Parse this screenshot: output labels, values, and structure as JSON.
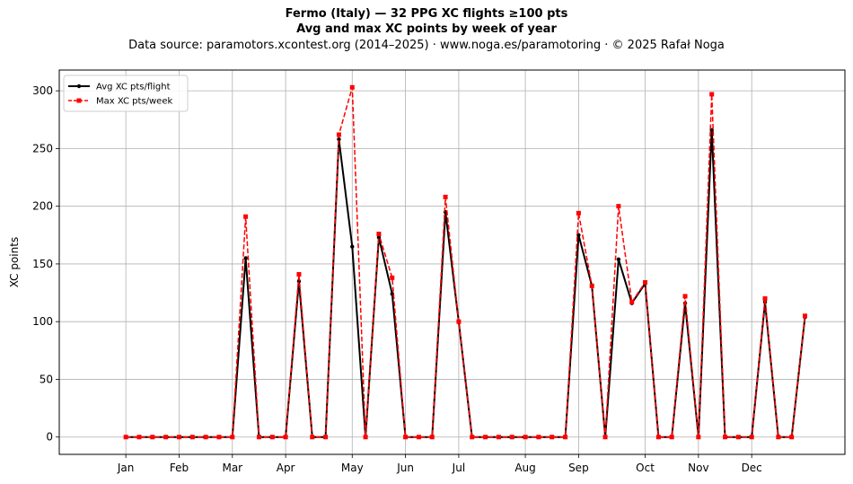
{
  "header": {
    "title": "Fermo (Italy)  —  32 PPG XC flights ≥100 pts",
    "subtitle": "Avg and max XC points by week of year",
    "source": "Data source: paramotors.xcontest.org (2014–2025)  ·  www.noga.es/paramotoring  ·  © 2025 Rafał Noga"
  },
  "chart_data": {
    "type": "line",
    "title": "Fermo (Italy)  —  32 PPG XC flights ≥100 pts",
    "subtitle": "Avg and max XC points by week of year",
    "xlabel": "",
    "ylabel": "XC points",
    "xlim": [
      -4,
      55
    ],
    "ylim": [
      -15,
      318
    ],
    "grid": true,
    "legend_position": "top-left",
    "x_ticks": [
      {
        "week": 1,
        "label": "Jan"
      },
      {
        "week": 5,
        "label": "Feb"
      },
      {
        "week": 9,
        "label": "Mar"
      },
      {
        "week": 13,
        "label": "Apr"
      },
      {
        "week": 18,
        "label": "May"
      },
      {
        "week": 22,
        "label": "Jun"
      },
      {
        "week": 26,
        "label": "Jul"
      },
      {
        "week": 31,
        "label": "Aug"
      },
      {
        "week": 35,
        "label": "Sep"
      },
      {
        "week": 40,
        "label": "Oct"
      },
      {
        "week": 44,
        "label": "Nov"
      },
      {
        "week": 48,
        "label": "Dec"
      }
    ],
    "y_ticks": [
      0,
      50,
      100,
      150,
      200,
      250,
      300
    ],
    "x": [
      1,
      2,
      3,
      4,
      5,
      6,
      7,
      8,
      9,
      10,
      11,
      12,
      13,
      14,
      15,
      16,
      17,
      18,
      19,
      20,
      21,
      22,
      23,
      24,
      25,
      26,
      27,
      28,
      29,
      30,
      31,
      32,
      33,
      34,
      35,
      36,
      37,
      38,
      39,
      40,
      41,
      42,
      43,
      44,
      45,
      46,
      47,
      48,
      49,
      50,
      51,
      52
    ],
    "series": [
      {
        "name": "Avg XC pts/flight",
        "color": "#000000",
        "style": "solid",
        "marker": "circle",
        "values": [
          0,
          0,
          0,
          0,
          0,
          0,
          0,
          0,
          0,
          155,
          0,
          0,
          0,
          135,
          0,
          0,
          258,
          165,
          0,
          173,
          124,
          0,
          0,
          0,
          195,
          100,
          0,
          0,
          0,
          0,
          0,
          0,
          0,
          0,
          175,
          131,
          0,
          154,
          116,
          133,
          0,
          0,
          116,
          0,
          266,
          0,
          0,
          0,
          117,
          0,
          0,
          104
        ]
      },
      {
        "name": "Max XC pts/week",
        "color": "#ff0000",
        "style": "dashed",
        "marker": "square",
        "values": [
          0,
          0,
          0,
          0,
          0,
          0,
          0,
          0,
          0,
          191,
          0,
          0,
          0,
          141,
          0,
          0,
          262,
          303,
          0,
          176,
          138,
          0,
          0,
          0,
          208,
          100,
          0,
          0,
          0,
          0,
          0,
          0,
          0,
          0,
          194,
          131,
          0,
          200,
          117,
          134,
          0,
          0,
          122,
          0,
          297,
          0,
          0,
          0,
          120,
          0,
          0,
          105
        ]
      }
    ]
  }
}
